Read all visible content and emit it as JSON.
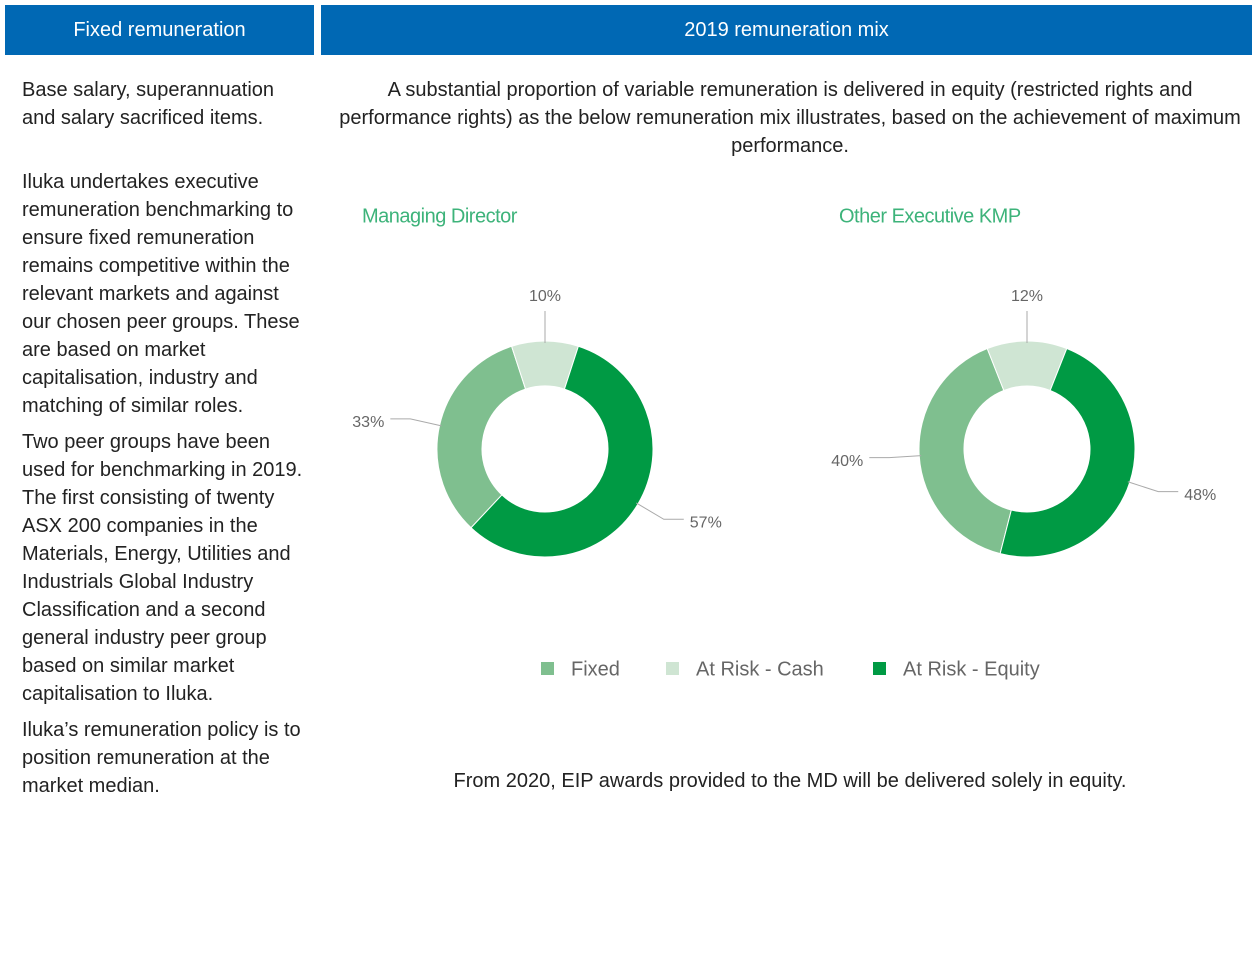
{
  "headers": [
    "Fixed remuneration",
    "2019 remuneration mix"
  ],
  "left_paragraphs": [
    "Base salary, superannuation and salary sacrificed items.",
    "Iluka undertakes executive remuneration benchmarking to ensure fixed remuneration remains competitive within the relevant markets and against our chosen peer groups.  These are based on market capitalisation, industry and matching of similar roles.",
    "Two peer groups have been used for benchmarking in 2019. The first consisting of twenty ASX 200 companies in the Materials, Energy, Utilities and Industrials Global Industry Classification and a second general industry peer group based on similar market capitalisation to Iluka.",
    "Iluka’s remuneration policy is to position remuneration at the market median."
  ],
  "intro": "A substantial proportion of variable remuneration is delivered in equity (restricted rights and performance rights) as the below remuneration mix illustrates, based on the achievement of maximum performance.",
  "footer_note": "From 2020, EIP awards provided to the MD will be delivered solely in equity.",
  "chart_data": [
    {
      "type": "pie",
      "donut": true,
      "title": "Managing Director",
      "categories": [
        "Fixed",
        "At Risk - Cash",
        "At Risk - Equity"
      ],
      "values": [
        33,
        10,
        57
      ],
      "value_labels": [
        "33%",
        "10%",
        "57%"
      ],
      "colors": [
        "#7fbf8f",
        "#cfe5d3",
        "#009a44"
      ],
      "legend": "bottom"
    },
    {
      "type": "pie",
      "donut": true,
      "title": "Other Executive KMP",
      "categories": [
        "Fixed",
        "At Risk - Cash",
        "At Risk - Equity"
      ],
      "values": [
        40,
        12,
        48
      ],
      "value_labels": [
        "40%",
        "12%",
        "48%"
      ],
      "colors": [
        "#7fbf8f",
        "#cfe5d3",
        "#009a44"
      ]
    }
  ]
}
